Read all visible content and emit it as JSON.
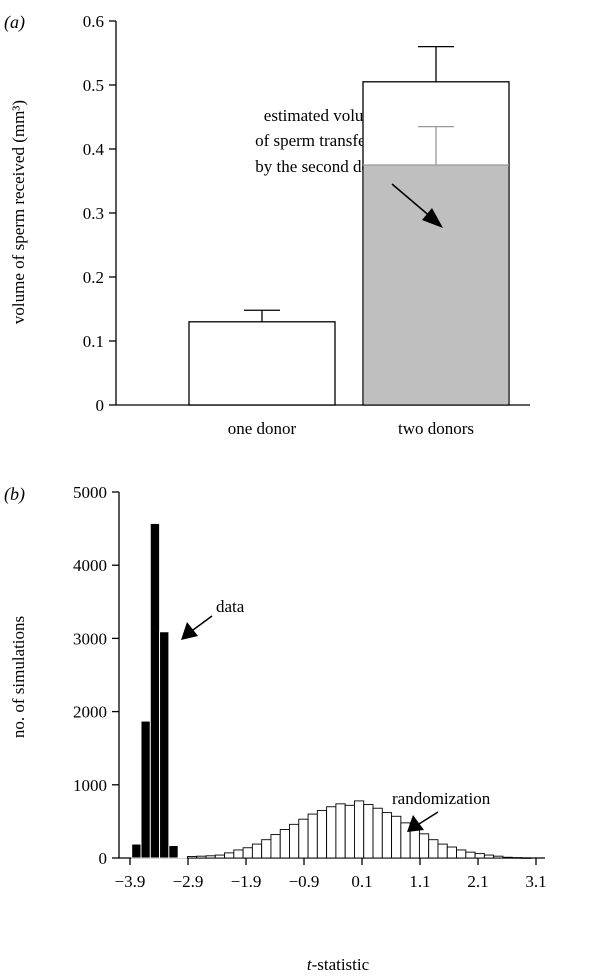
{
  "panel_a": {
    "label": "(a)",
    "ylabel": "volume of sperm received (mm³)",
    "annotation": [
      "estimated volume",
      "of sperm transferred",
      "by the second donor"
    ]
  },
  "panel_b": {
    "label": "(b)",
    "ylabel": "no. of simulations",
    "xlabel_italic": "t",
    "xlabel_rest": "-statistic",
    "annotation_data": "data",
    "annotation_random": "randomization"
  },
  "chart_data": [
    {
      "type": "bar",
      "categories": [
        "one donor",
        "two donors"
      ],
      "values": [
        0.13,
        0.505
      ],
      "errors": [
        0.018,
        0.055
      ],
      "second_donor_estimate": {
        "value": 0.375,
        "error": 0.06,
        "color": "#bfbfbf"
      },
      "ylim": [
        0,
        0.6
      ],
      "yticks": [
        0,
        0.1,
        0.2,
        0.3,
        0.4,
        0.5,
        0.6
      ],
      "ytick_labels": [
        "0",
        "0.1",
        "0.2",
        "0.3",
        "0.4",
        "0.5",
        "0.6"
      ],
      "title": "",
      "xlabel": "",
      "ylabel": "volume of sperm received (mm³)"
    },
    {
      "type": "bar",
      "title": "",
      "xlabel": "t-statistic",
      "ylabel": "no. of simulations",
      "ylim": [
        0,
        5000
      ],
      "xlim": [
        -4.0,
        4.2
      ],
      "yticks": [
        0,
        1000,
        2000,
        3000,
        4000,
        5000
      ],
      "ytick_labels": [
        "0",
        "1000",
        "2000",
        "3000",
        "4000",
        "5000"
      ],
      "xticks": [
        -3.9,
        -2.9,
        -1.9,
        -0.9,
        0.1,
        1.1,
        2.1,
        3.1
      ],
      "xtick_labels": [
        "−3.9",
        "−2.9",
        "−1.9",
        "−0.9",
        "0.1",
        "1.1",
        "2.1",
        "3.1"
      ],
      "bin_width": 0.16,
      "series": [
        {
          "name": "data",
          "fill": "#000000",
          "x": [
            -3.79,
            -3.63,
            -3.47,
            -3.31,
            -3.15,
            -2.99
          ],
          "values": [
            190,
            1870,
            4570,
            3090,
            170,
            10
          ]
        },
        {
          "name": "randomization",
          "fill": "#ffffff",
          "x": [
            -2.83,
            -2.67,
            -2.51,
            -2.35,
            -2.19,
            -2.03,
            -1.87,
            -1.71,
            -1.55,
            -1.39,
            -1.23,
            -1.07,
            -0.91,
            -0.75,
            -0.59,
            -0.43,
            -0.27,
            -0.11,
            0.05,
            0.21,
            0.37,
            0.53,
            0.69,
            0.85,
            1.01,
            1.17,
            1.33,
            1.49,
            1.65,
            1.81,
            1.97,
            2.13,
            2.29,
            2.45,
            2.61,
            2.77,
            2.93
          ],
          "values": [
            20,
            25,
            30,
            40,
            70,
            110,
            140,
            190,
            250,
            320,
            390,
            460,
            530,
            600,
            650,
            700,
            740,
            720,
            780,
            730,
            680,
            620,
            570,
            480,
            400,
            330,
            250,
            190,
            150,
            110,
            80,
            60,
            40,
            25,
            10,
            5,
            2
          ]
        }
      ]
    }
  ]
}
